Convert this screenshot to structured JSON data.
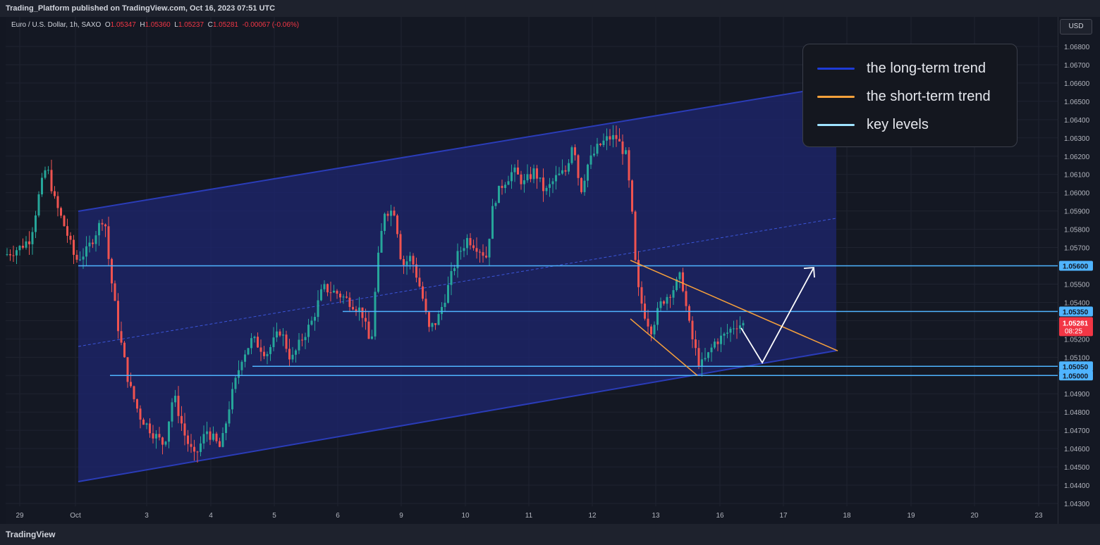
{
  "header": {
    "publisher_line": "Trading_Platform published on TradingView.com, Oct 16, 2023 07:51 UTC"
  },
  "symbol": {
    "name": "Euro / U.S. Dollar, 1h, SAXO",
    "o_label": "O",
    "o": "1.05347",
    "h_label": "H",
    "h": "1.05360",
    "l_label": "L",
    "l": "1.05237",
    "c_label": "C",
    "c": "1.05281",
    "change": "-0.00067 (-0.06%)"
  },
  "currency_button": "USD",
  "legend": {
    "items": [
      {
        "label": "the long-term trend",
        "color": "#1e3bd6"
      },
      {
        "label": "the short-term trend",
        "color": "#f7a13b"
      },
      {
        "label": "key levels",
        "color": "#9fe3ff"
      }
    ]
  },
  "chart_data": {
    "type": "candlestick",
    "symbol": "EURUSD",
    "timeframe": "1h",
    "x_ticks": [
      "29",
      "Oct",
      "3",
      "4",
      "5",
      "6",
      "9",
      "10",
      "11",
      "12",
      "13",
      "16",
      "17",
      "18",
      "19",
      "20",
      "23"
    ],
    "y_ticks": [
      "1.06800",
      "1.06700",
      "1.06600",
      "1.06500",
      "1.06400",
      "1.06300",
      "1.06200",
      "1.06100",
      "1.06000",
      "1.05900",
      "1.05800",
      "1.05700",
      "1.05600",
      "1.05500",
      "1.05400",
      "1.05300",
      "1.05200",
      "1.05100",
      "1.05000",
      "1.04900",
      "1.04800",
      "1.04700",
      "1.04600",
      "1.04500",
      "1.04400",
      "1.04300"
    ],
    "ylim": [
      1.0425,
      1.0685
    ],
    "price_labels": [
      {
        "value": "1.05600",
        "kind": "key-level"
      },
      {
        "value": "1.05350",
        "kind": "key-level"
      },
      {
        "value": "1.05050",
        "kind": "key-level"
      },
      {
        "value": "1.05000",
        "kind": "key-level"
      }
    ],
    "current_price": {
      "value": "1.05281",
      "countdown": "08:25",
      "color": "#f23645"
    },
    "key_levels": [
      1.056,
      1.0535,
      1.0505,
      1.05
    ],
    "colors": {
      "up": "#26a69a",
      "down": "#ef5350",
      "channel_line": "#2a3cb8",
      "channel_fill": "#1d2670",
      "key_level": "#4fb4ff",
      "short_trend": "#f7a13b",
      "projection": "#ffffff"
    }
  },
  "branding": {
    "footer": "TradingView"
  }
}
